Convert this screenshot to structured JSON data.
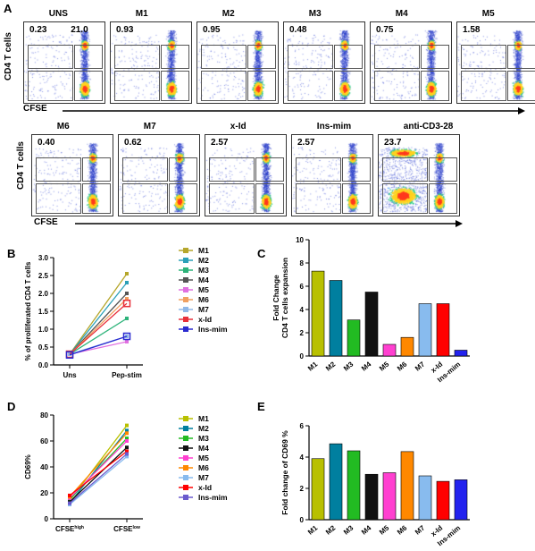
{
  "panel_labels": {
    "A": "A",
    "B": "B",
    "C": "C",
    "D": "D",
    "E": "E"
  },
  "flow": {
    "ylabel": "CD4 T cells",
    "xlabel": "CFSE",
    "row1": [
      {
        "title": "UNS",
        "left": "0.23",
        "right": "21.0"
      },
      {
        "title": "M1",
        "left": "0.93",
        "right": ""
      },
      {
        "title": "M2",
        "left": "0.95",
        "right": ""
      },
      {
        "title": "M3",
        "left": "0.48",
        "right": ""
      },
      {
        "title": "M4",
        "left": "0.75",
        "right": ""
      },
      {
        "title": "M5",
        "left": "1.58",
        "right": ""
      }
    ],
    "row2": [
      {
        "title": "M6",
        "left": "0.40",
        "right": ""
      },
      {
        "title": "M7",
        "left": "0.62",
        "right": ""
      },
      {
        "title": "x-Id",
        "left": "2.57",
        "right": ""
      },
      {
        "title": "Ins-mim",
        "left": "2.57",
        "right": ""
      },
      {
        "title": "anti-CD3-28",
        "left": "23.7",
        "right": ""
      }
    ]
  },
  "chart_data": [
    {
      "id": "B",
      "type": "line",
      "ylabel": "% of prolliferated CD4 T cells",
      "categories": [
        "Uns",
        "Pep-stim"
      ],
      "ylim": [
        0,
        3.0
      ],
      "yticks": [
        "0.0",
        "0.5",
        "1.0",
        "1.5",
        "2.0",
        "2.5",
        "3.0"
      ],
      "series": [
        {
          "name": "M1",
          "values": [
            0.3,
            2.55
          ],
          "color": "#b5a62b"
        },
        {
          "name": "M2",
          "values": [
            0.3,
            2.3
          ],
          "color": "#2aa0b8"
        },
        {
          "name": "M3",
          "values": [
            0.3,
            1.3
          ],
          "color": "#2db37a"
        },
        {
          "name": "M4",
          "values": [
            0.3,
            2.0
          ],
          "color": "#555555"
        },
        {
          "name": "M5",
          "values": [
            0.3,
            0.65
          ],
          "color": "#e070e0"
        },
        {
          "name": "M6",
          "values": [
            0.3,
            1.85
          ],
          "color": "#f0a060"
        },
        {
          "name": "M7",
          "values": [
            0.3,
            0.8
          ],
          "color": "#8fb8e8"
        },
        {
          "name": "x-Id",
          "values": [
            0.3,
            1.72
          ],
          "color": "#e8303a"
        },
        {
          "name": "Ins-mim",
          "values": [
            0.28,
            0.8
          ],
          "color": "#2a2ad0"
        }
      ]
    },
    {
      "id": "C",
      "type": "bar",
      "ylabel": "Fold Change\nCD4 T cells expansion",
      "categories": [
        "M1",
        "M2",
        "M3",
        "M4",
        "M5",
        "M6",
        "M7",
        "x-Id",
        "Ins-mim"
      ],
      "values": [
        7.3,
        6.5,
        3.1,
        5.5,
        1.0,
        1.6,
        4.5,
        4.5,
        0.5
      ],
      "colors": [
        "#b8c000",
        "#007f9f",
        "#22bb22",
        "#111111",
        "#ff40d0",
        "#ff8800",
        "#88bbee",
        "#ff0000",
        "#2222ee"
      ],
      "ylim": [
        0,
        10
      ],
      "yticks": [
        "0",
        "2",
        "4",
        "6",
        "8",
        "10"
      ]
    },
    {
      "id": "D",
      "type": "line",
      "ylabel": "CD69%",
      "categories": [
        "CFSE",
        "CFSE"
      ],
      "cat_sup": [
        "high",
        "low"
      ],
      "ylim": [
        0,
        80
      ],
      "yticks": [
        "0",
        "20",
        "40",
        "60",
        "80"
      ],
      "series": [
        {
          "name": "M1",
          "values": [
            14,
            72
          ],
          "color": "#b8c000"
        },
        {
          "name": "M2",
          "values": [
            12,
            68
          ],
          "color": "#007f9f"
        },
        {
          "name": "M3",
          "values": [
            15,
            62
          ],
          "color": "#22bb22"
        },
        {
          "name": "M4",
          "values": [
            13,
            55
          ],
          "color": "#111111"
        },
        {
          "name": "M5",
          "values": [
            16,
            60
          ],
          "color": "#ff40d0"
        },
        {
          "name": "M6",
          "values": [
            17,
            66
          ],
          "color": "#ff8800"
        },
        {
          "name": "M7",
          "values": [
            11,
            48
          ],
          "color": "#88bbee"
        },
        {
          "name": "x-Id",
          "values": [
            18,
            52
          ],
          "color": "#ff0000"
        },
        {
          "name": "Ins-mim",
          "values": [
            12,
            50
          ],
          "color": "#6a5acd"
        }
      ]
    },
    {
      "id": "E",
      "type": "bar",
      "ylabel": "Fold change of CD69 %",
      "categories": [
        "M1",
        "M2",
        "M3",
        "M4",
        "M5",
        "M6",
        "M7",
        "x-Id",
        "Ins-mim"
      ],
      "values": [
        3.9,
        4.85,
        4.4,
        2.9,
        3.0,
        4.35,
        2.8,
        2.45,
        2.55
      ],
      "colors": [
        "#b8c000",
        "#007f9f",
        "#22bb22",
        "#111111",
        "#ff40d0",
        "#ff8800",
        "#88bbee",
        "#ff0000",
        "#2222ee"
      ],
      "ylim": [
        0,
        6
      ],
      "yticks": [
        "0",
        "2",
        "4",
        "6"
      ]
    }
  ]
}
